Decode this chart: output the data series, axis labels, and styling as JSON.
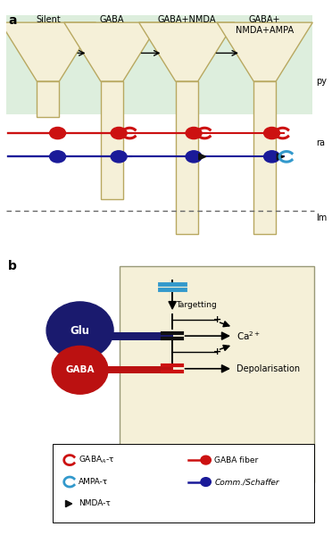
{
  "panel_a_bg": "#ddeedd",
  "funnel_color": "#f5f0d8",
  "funnel_edge": "#b8a860",
  "red_fiber": "#cc1111",
  "blue_fiber": "#1a1a99",
  "red_circle": "#cc1111",
  "blue_circle": "#1a1a99",
  "cyan_receptor": "#3399cc",
  "arrow_color": "#111111",
  "dashed_color": "#666666",
  "panel_b_bg": "#f5f0d8",
  "glu_color": "#1a1a6e",
  "gaba_color": "#bb1111",
  "capacitor_blue": "#3399cc",
  "capacitor_red": "#cc1111",
  "capacitor_black": "#111111",
  "title_a": "a",
  "title_b": "b",
  "labels_top": [
    "Silent",
    "GABA",
    "GABA+NMDA",
    "GABA+\nNMDA+AMPA"
  ],
  "label_py": "py",
  "label_ra": "ra",
  "label_lm": "lm"
}
